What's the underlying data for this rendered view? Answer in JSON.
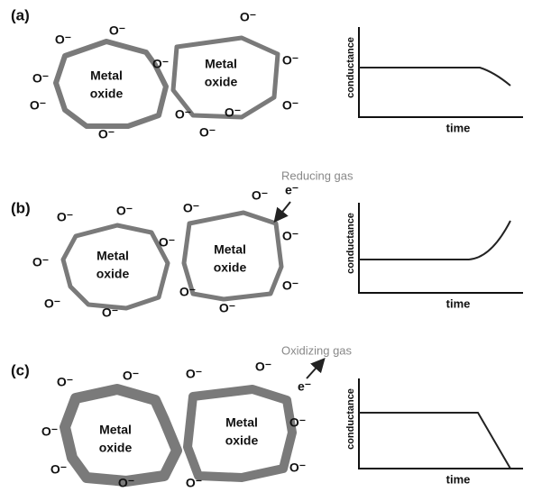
{
  "panels": [
    {
      "label": "(a)",
      "grains": [
        [
          "Metal",
          "oxide"
        ],
        [
          "Metal",
          "oxide"
        ]
      ],
      "ions": [
        "O⁻",
        "O⁻",
        "O⁻",
        "O⁻",
        "O⁻",
        "O⁻",
        "O⁻",
        "O⁻",
        "O⁻",
        "O⁻",
        "O⁻",
        "O⁻"
      ],
      "y_axis": "conductance",
      "x_axis": "time"
    },
    {
      "label": "(b)",
      "gas": "Reducing gas",
      "electron": "e⁻",
      "grains": [
        [
          "Metal",
          "oxide"
        ],
        [
          "Metal",
          "oxide"
        ]
      ],
      "ions": [
        "O⁻",
        "O⁻",
        "O⁻",
        "O⁻",
        "O⁻",
        "O⁻",
        "O⁻",
        "O⁻",
        "O⁻",
        "O⁻",
        "O⁻",
        "O⁻"
      ],
      "y_axis": "conductance",
      "x_axis": "time"
    },
    {
      "label": "(c)",
      "gas": "Oxidizing gas",
      "electron": "e⁻",
      "grains": [
        [
          "Metal",
          "oxide"
        ],
        [
          "Metal",
          "oxide"
        ]
      ],
      "ions": [
        "O⁻",
        "O⁻",
        "O⁻",
        "O⁻",
        "O⁻",
        "O⁻",
        "O⁻",
        "O⁻",
        "O⁻",
        "O⁻"
      ],
      "y_axis": "conductance",
      "x_axis": "time"
    }
  ]
}
